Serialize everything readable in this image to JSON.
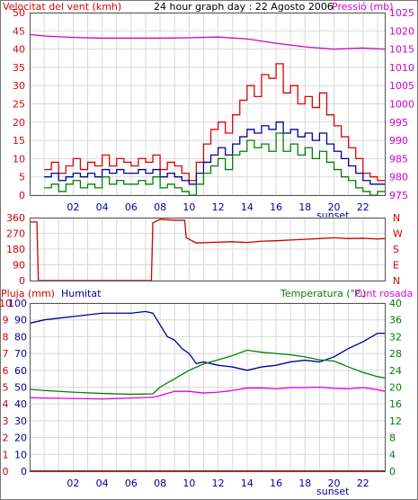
{
  "colors": {
    "wind": "#e00000",
    "pressure": "#cc00cc",
    "humidity": "#00009a",
    "temperature": "#008000",
    "dewpoint": "#e000e0",
    "rain": "#d00000",
    "wind_dir": "#cc0000",
    "black": "#000000"
  },
  "chart_data": [
    {
      "type": "line",
      "title": "24 hour graph day : 22 Agosto 2006",
      "left_axis_label": "Velocitat del vent (kmh)",
      "right_axis_label": "Pressió (mb)",
      "x_ticks": [
        "02",
        "04",
        "06",
        "08",
        "10",
        "12",
        "14",
        "16",
        "18",
        "20",
        "22"
      ],
      "x_annotation": "sunset",
      "ylim_left": [
        0,
        50
      ],
      "y_ticks_left": [
        0,
        5,
        10,
        15,
        20,
        25,
        30,
        35,
        40,
        45,
        50
      ],
      "ylim_right": [
        975,
        1025
      ],
      "y_ticks_right": [
        975,
        980,
        985,
        990,
        995,
        1000,
        1005,
        1010,
        1015,
        1020,
        1025
      ],
      "grid": true,
      "series": [
        {
          "key": "wind_gust",
          "axis": "left",
          "color": "wind",
          "x": [
            0,
            0.5,
            1,
            1.5,
            2,
            2.5,
            3,
            3.5,
            4,
            4.5,
            5,
            5.5,
            6,
            6.5,
            7,
            7.5,
            8,
            8.5,
            9,
            9.5,
            10,
            10.5,
            11,
            11.5,
            12,
            12.5,
            13,
            13.5,
            14,
            14.5,
            15,
            15.5,
            16,
            16.5,
            17,
            17.5,
            18,
            18.5,
            19,
            19.5,
            20,
            20.5,
            21,
            21.5,
            22,
            22.5,
            23,
            23.5
          ],
          "values": [
            7,
            9,
            6,
            8,
            10,
            7,
            9,
            8,
            11,
            8,
            10,
            9,
            8,
            10,
            9,
            11,
            7,
            9,
            8,
            6,
            4,
            9,
            14,
            18,
            20,
            17,
            22,
            26,
            30,
            27,
            33,
            32,
            36,
            28,
            30,
            25,
            27,
            24,
            28,
            22,
            19,
            16,
            13,
            10,
            6,
            5,
            4,
            4
          ]
        },
        {
          "key": "wind_avg",
          "axis": "left",
          "color": "humidity",
          "x": [
            0,
            0.5,
            1,
            1.5,
            2,
            2.5,
            3,
            3.5,
            4,
            4.5,
            5,
            5.5,
            6,
            6.5,
            7,
            7.5,
            8,
            8.5,
            9,
            9.5,
            10,
            10.5,
            11,
            11.5,
            12,
            12.5,
            13,
            13.5,
            14,
            14.5,
            15,
            15.5,
            16,
            16.5,
            17,
            17.5,
            18,
            18.5,
            19,
            19.5,
            20,
            20.5,
            21,
            21.5,
            22,
            22.5,
            23,
            23.5
          ],
          "values": [
            5,
            6,
            4,
            5,
            6,
            5,
            6,
            5,
            7,
            6,
            7,
            6,
            6,
            7,
            6,
            7,
            5,
            6,
            5,
            4,
            3,
            6,
            9,
            11,
            13,
            11,
            14,
            16,
            18,
            17,
            19,
            18,
            20,
            17,
            18,
            16,
            17,
            15,
            17,
            14,
            12,
            10,
            8,
            6,
            4,
            3,
            3,
            3
          ]
        },
        {
          "key": "wind_min",
          "axis": "left",
          "color": "temperature",
          "x": [
            0,
            0.5,
            1,
            1.5,
            2,
            2.5,
            3,
            3.5,
            4,
            4.5,
            5,
            5.5,
            6,
            6.5,
            7,
            7.5,
            8,
            8.5,
            9,
            9.5,
            10,
            10.5,
            11,
            11.5,
            12,
            12.5,
            13,
            13.5,
            14,
            14.5,
            15,
            15.5,
            16,
            16.5,
            17,
            17.5,
            18,
            18.5,
            19,
            19.5,
            20,
            20.5,
            21,
            21.5,
            22,
            22.5,
            23,
            23.5
          ],
          "values": [
            2,
            3,
            1,
            3,
            4,
            2,
            3,
            2,
            5,
            3,
            4,
            3,
            3,
            4,
            3,
            5,
            2,
            3,
            2,
            1,
            0,
            3,
            6,
            8,
            10,
            7,
            11,
            12,
            15,
            13,
            14,
            12,
            17,
            12,
            14,
            11,
            13,
            10,
            12,
            9,
            7,
            5,
            4,
            2,
            1,
            0,
            1,
            1
          ]
        },
        {
          "key": "pressure",
          "axis": "right",
          "color": "pressure",
          "x": [
            -1,
            0,
            2,
            4,
            6,
            8,
            10,
            12,
            14,
            16,
            18,
            20,
            22,
            23.5
          ],
          "values": [
            1019.0,
            1018.6,
            1018.2,
            1018.0,
            1018.0,
            1018.0,
            1018.1,
            1018.3,
            1017.8,
            1016.6,
            1015.6,
            1015.0,
            1015.3,
            1015.0
          ]
        }
      ]
    },
    {
      "type": "line",
      "title": "",
      "y_ticks_left": [
        0,
        90,
        180,
        270,
        360
      ],
      "ylim": [
        0,
        360
      ],
      "right_labels": [
        "N",
        "W",
        "S",
        "E",
        "N"
      ],
      "series": [
        {
          "key": "wind_direction",
          "color": "wind_dir",
          "x": [
            -1,
            -0.5,
            -0.4,
            7.4,
            7.5,
            8,
            9,
            9.7,
            9.8,
            10.5,
            12,
            13,
            14,
            15,
            16,
            17,
            18,
            19,
            20,
            21,
            22,
            23,
            23.5
          ],
          "values": [
            335,
            335,
            0,
            0,
            330,
            350,
            345,
            345,
            245,
            215,
            220,
            222,
            218,
            225,
            228,
            232,
            236,
            240,
            245,
            240,
            242,
            238,
            240
          ]
        }
      ]
    },
    {
      "type": "line",
      "left_axis_label": "Pluja (mm)",
      "left_axis_label_2": "Humitat",
      "right_axis_label": "Temperatura (°C)",
      "right_axis_label_2": "Punt rosada",
      "x_ticks": [
        "02",
        "04",
        "06",
        "08",
        "10",
        "12",
        "14",
        "16",
        "18",
        "20",
        "22"
      ],
      "x_annotation": "sunset",
      "ylim_rain": [
        0,
        10
      ],
      "y_ticks_rain": [
        0,
        1,
        2,
        3,
        4,
        5,
        6,
        7,
        8,
        9,
        10
      ],
      "ylim_humidity": [
        0,
        100
      ],
      "y_ticks_humidity": [
        0,
        10,
        20,
        30,
        40,
        50,
        60,
        70,
        80,
        90,
        100
      ],
      "ylim_temperature": [
        0,
        40
      ],
      "y_ticks_temperature": [
        0,
        4,
        8,
        12,
        16,
        20,
        24,
        28,
        32,
        36,
        40
      ],
      "y_ticks_right": [
        0,
        4,
        8,
        12,
        16,
        20,
        24,
        28,
        32,
        36,
        40
      ],
      "grid": true,
      "series": [
        {
          "key": "rain",
          "axis": "rain",
          "color": "rain",
          "x": [
            -1,
            23.5
          ],
          "values": [
            0,
            0
          ]
        },
        {
          "key": "humidity",
          "axis": "humidity",
          "color": "humidity",
          "x": [
            -1,
            0,
            1,
            2,
            3,
            4,
            5,
            6,
            7,
            7.5,
            8,
            8.5,
            9,
            9.5,
            10,
            10.5,
            11,
            12,
            13,
            14,
            15,
            16,
            17,
            18,
            19,
            20,
            21,
            22,
            23,
            23.5
          ],
          "values": [
            88,
            90,
            91,
            92,
            93,
            94,
            94,
            94,
            95,
            94,
            87,
            80,
            78,
            73,
            70,
            64,
            65,
            63,
            62,
            60,
            62,
            63,
            65,
            66,
            65,
            68,
            73,
            77,
            82,
            82
          ]
        },
        {
          "key": "temperature",
          "axis": "temperature",
          "color": "temperature",
          "x": [
            -1,
            0,
            2,
            4,
            6,
            7.5,
            8,
            9,
            10,
            11,
            12,
            13,
            14,
            15,
            16,
            17,
            18,
            19,
            20,
            21,
            22,
            23,
            23.5
          ],
          "values": [
            19.5,
            19.2,
            18.8,
            18.5,
            18.3,
            18.4,
            20,
            22,
            24,
            25.5,
            26.5,
            27.5,
            28.8,
            28.3,
            28,
            27.7,
            27.2,
            26.5,
            26.2,
            24.8,
            23.5,
            22.5,
            22.2
          ]
        },
        {
          "key": "dewpoint",
          "axis": "temperature",
          "color": "dewpoint",
          "x": [
            -1,
            0,
            2,
            4,
            6,
            7.5,
            8,
            9,
            10,
            11,
            12,
            13,
            14,
            15,
            16,
            17,
            18,
            19,
            20,
            21,
            22,
            23,
            23.5
          ],
          "values": [
            17.5,
            17.4,
            17.3,
            17.2,
            17.4,
            17.6,
            18.0,
            19.0,
            19.0,
            18.6,
            18.8,
            19.2,
            19.8,
            19.8,
            19.6,
            19.9,
            19.9,
            20.0,
            19.7,
            19.6,
            19.9,
            19.4,
            19.0
          ]
        }
      ]
    }
  ]
}
